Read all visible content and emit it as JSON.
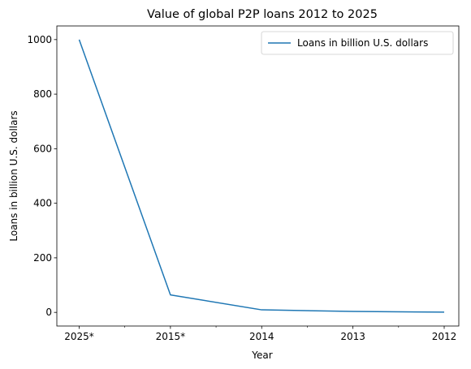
{
  "chart_data": {
    "type": "line",
    "title": "Value of global P2P loans 2012 to 2025",
    "xlabel": "Year",
    "ylabel": "Loans in billion U.S. dollars",
    "categories": [
      "2025*",
      "2015*",
      "2014",
      "2013",
      "2012"
    ],
    "series": [
      {
        "name": "Loans in billion U.S. dollars",
        "values": [
          1000,
          64,
          9.3,
          3.5,
          0.8
        ]
      }
    ],
    "ylim": [
      -50,
      1050
    ],
    "yticks": [
      0,
      200,
      400,
      600,
      800,
      1000
    ],
    "grid": false,
    "legend": "top-right",
    "colors": {
      "line": "#1f77b4"
    }
  }
}
